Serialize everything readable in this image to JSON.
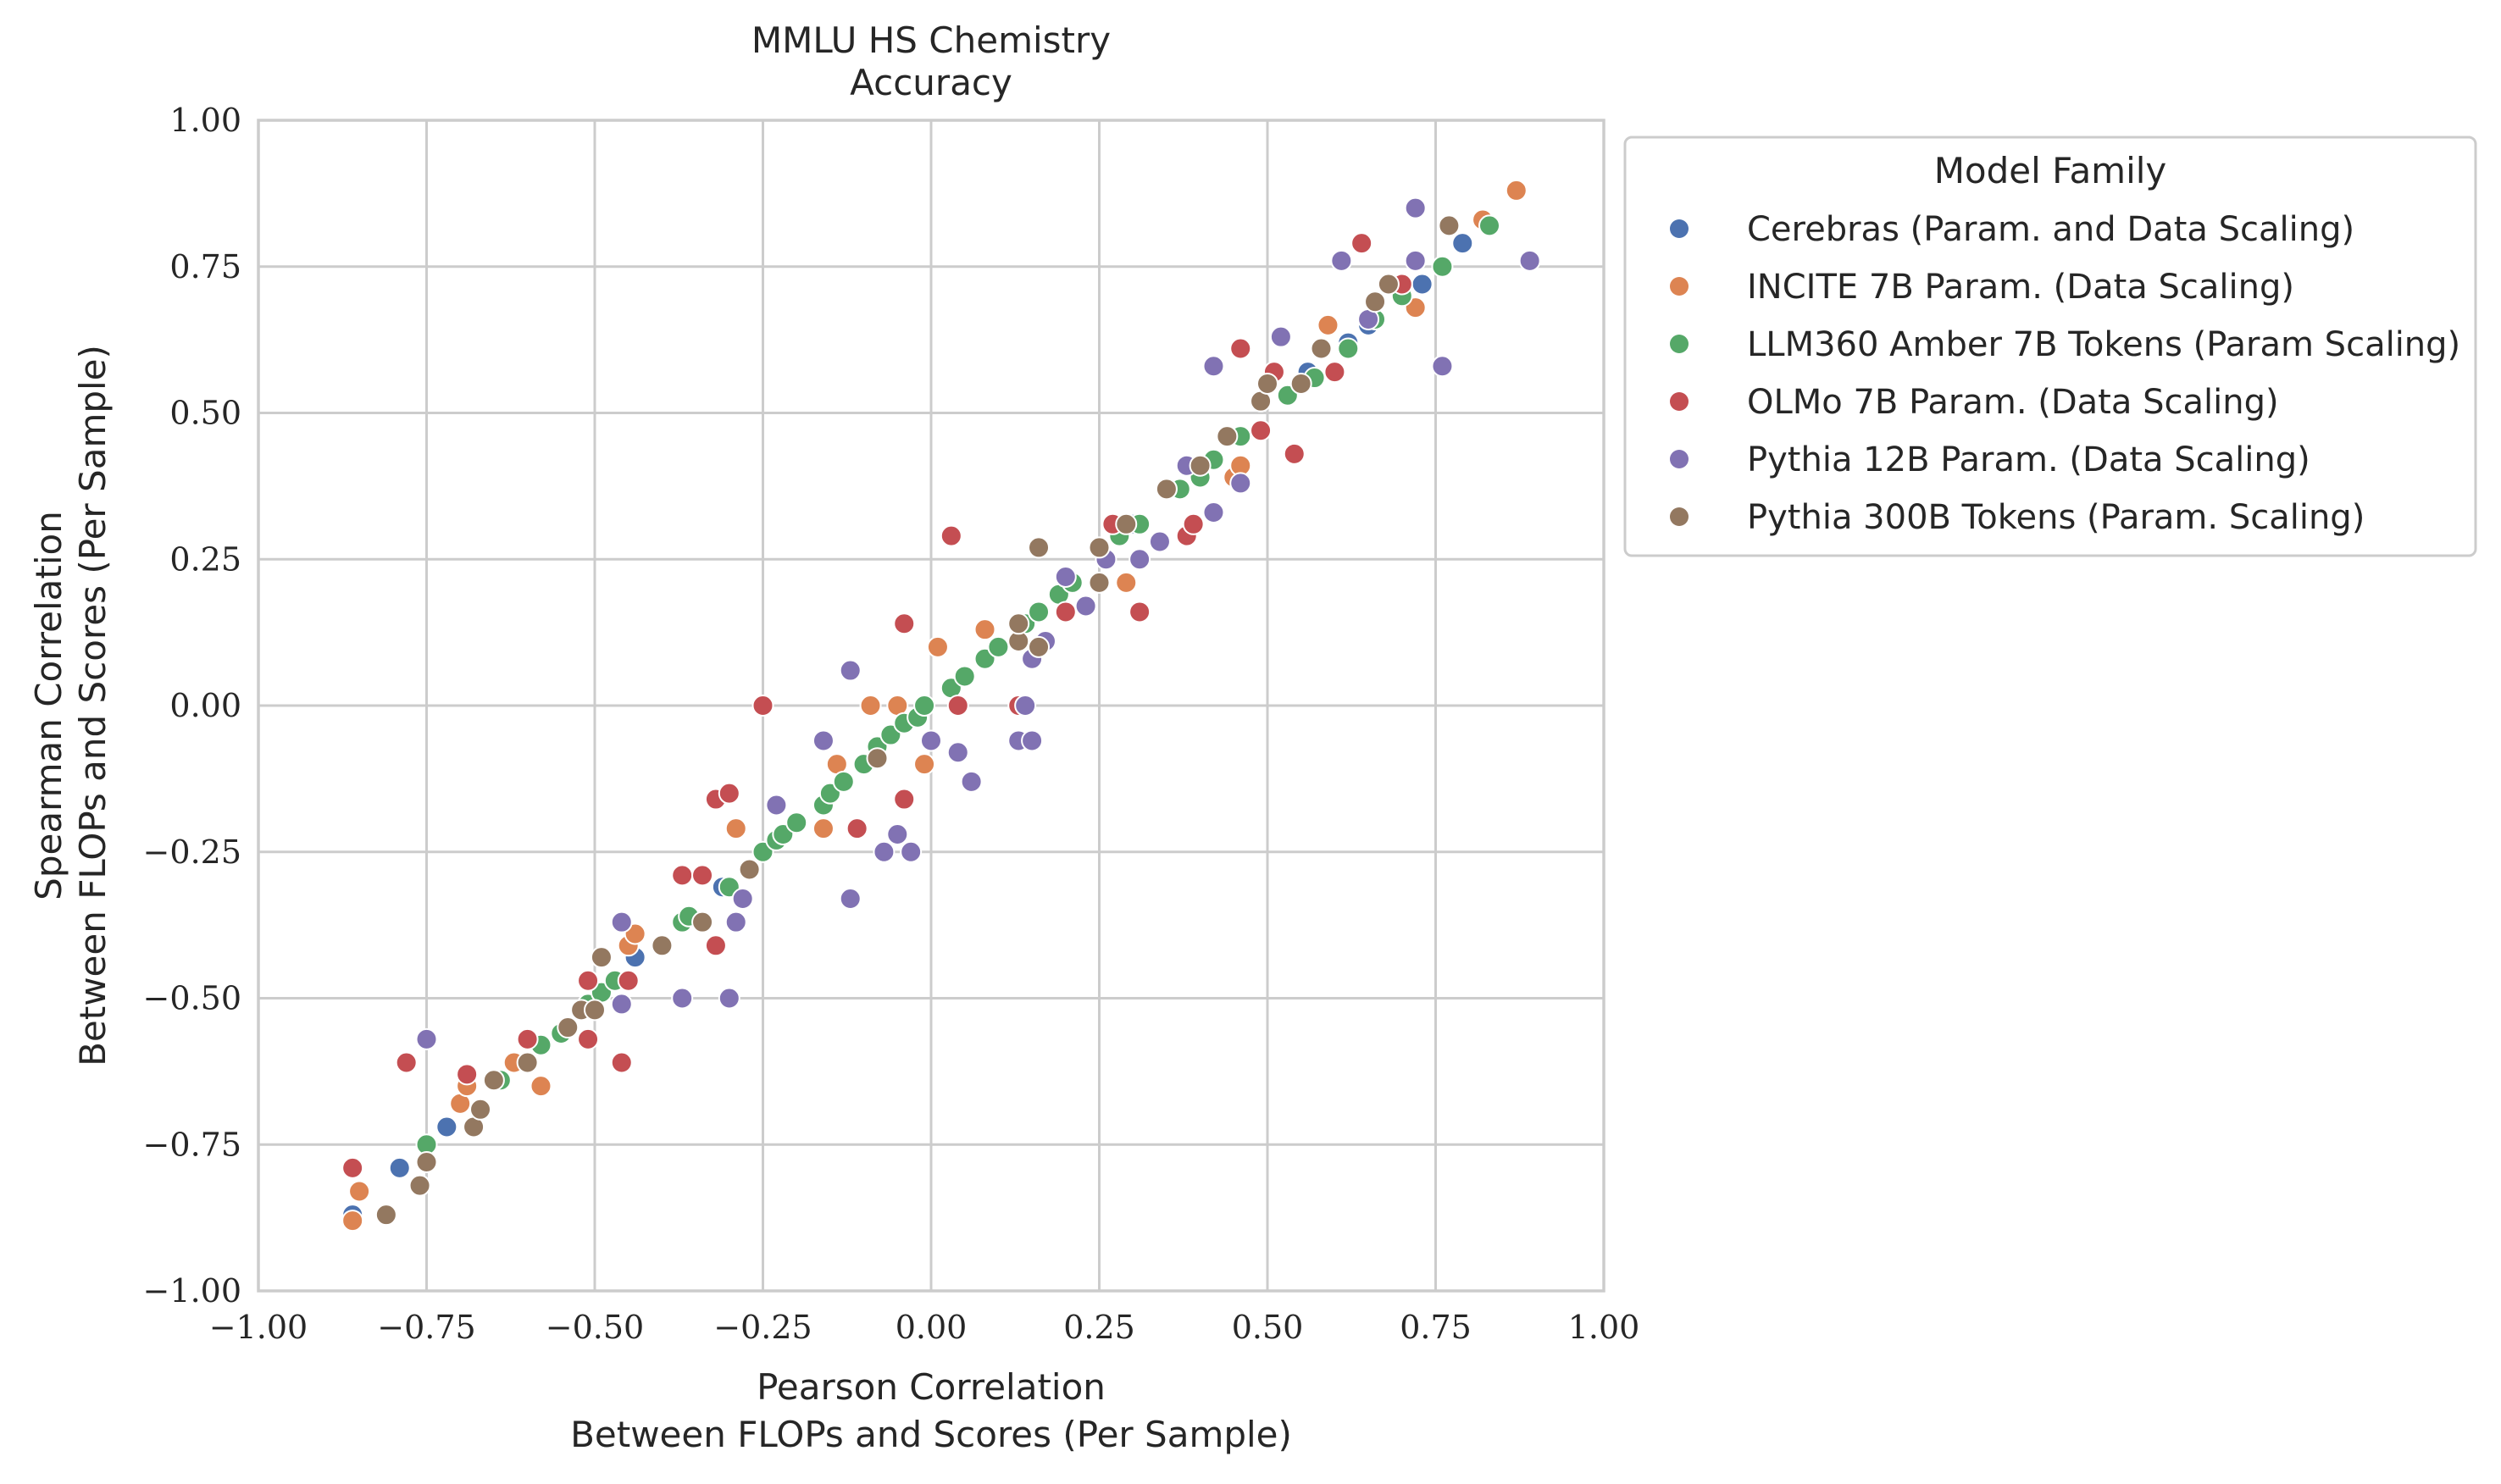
{
  "chart_data": {
    "type": "scatter",
    "title": "MMLU HS Chemistry",
    "subtitle": "Accuracy",
    "xlabel": [
      "Pearson Correlation",
      "Between FLOPs and Scores (Per Sample)"
    ],
    "ylabel": [
      "Spearman Correlation",
      "Between FLOPs and Scores (Per Sample)"
    ],
    "xlim": [
      -1.0,
      1.0
    ],
    "ylim": [
      -1.0,
      1.0
    ],
    "xticks": [
      -1.0,
      -0.75,
      -0.5,
      -0.25,
      0.0,
      0.25,
      0.5,
      0.75,
      1.0
    ],
    "yticks": [
      -1.0,
      -0.75,
      -0.5,
      -0.25,
      0.0,
      0.25,
      0.5,
      0.75,
      1.0
    ],
    "xtick_labels": [
      "−1.00",
      "−0.75",
      "−0.50",
      "−0.25",
      "0.00",
      "0.25",
      "0.50",
      "0.75",
      "1.00"
    ],
    "ytick_labels": [
      "−1.00",
      "−0.75",
      "−0.50",
      "−0.25",
      "0.00",
      "0.25",
      "0.50",
      "0.75",
      "1.00"
    ],
    "grid": true,
    "legend": {
      "title": "Model Family",
      "placement": "outside-right-top"
    },
    "series": [
      {
        "name": "Cerebras (Param. and Data Scaling)",
        "color": "#4c72b0",
        "points": [
          [
            -0.86,
            -0.87
          ],
          [
            -0.79,
            -0.79
          ],
          [
            -0.72,
            -0.72
          ],
          [
            -0.44,
            -0.43
          ],
          [
            -0.31,
            -0.31
          ],
          [
            0.3,
            0.31
          ],
          [
            0.56,
            0.57
          ],
          [
            0.62,
            0.62
          ],
          [
            0.65,
            0.65
          ],
          [
            0.73,
            0.72
          ],
          [
            0.79,
            0.79
          ]
        ]
      },
      {
        "name": "INCITE 7B Param. (Data Scaling)",
        "color": "#dd8452",
        "points": [
          [
            -0.86,
            -0.88
          ],
          [
            -0.85,
            -0.83
          ],
          [
            -0.7,
            -0.68
          ],
          [
            -0.69,
            -0.65
          ],
          [
            -0.62,
            -0.61
          ],
          [
            -0.58,
            -0.65
          ],
          [
            -0.45,
            -0.41
          ],
          [
            -0.44,
            -0.39
          ],
          [
            -0.29,
            -0.21
          ],
          [
            -0.16,
            -0.21
          ],
          [
            -0.14,
            -0.1
          ],
          [
            -0.09,
            0.0
          ],
          [
            -0.05,
            0.0
          ],
          [
            -0.01,
            -0.1
          ],
          [
            0.01,
            0.1
          ],
          [
            0.08,
            0.13
          ],
          [
            0.29,
            0.21
          ],
          [
            0.45,
            0.39
          ],
          [
            0.46,
            0.41
          ],
          [
            0.59,
            0.65
          ],
          [
            0.72,
            0.68
          ],
          [
            0.82,
            0.83
          ],
          [
            0.87,
            0.88
          ]
        ]
      },
      {
        "name": "LLM360 Amber 7B Tokens (Param Scaling)",
        "color": "#55a868",
        "points": [
          [
            -0.75,
            -0.75
          ],
          [
            -0.64,
            -0.64
          ],
          [
            -0.58,
            -0.58
          ],
          [
            -0.55,
            -0.56
          ],
          [
            -0.51,
            -0.51
          ],
          [
            -0.49,
            -0.49
          ],
          [
            -0.47,
            -0.47
          ],
          [
            -0.37,
            -0.37
          ],
          [
            -0.36,
            -0.36
          ],
          [
            -0.3,
            -0.31
          ],
          [
            -0.25,
            -0.25
          ],
          [
            -0.23,
            -0.23
          ],
          [
            -0.22,
            -0.22
          ],
          [
            -0.2,
            -0.2
          ],
          [
            -0.16,
            -0.17
          ],
          [
            -0.15,
            -0.15
          ],
          [
            -0.13,
            -0.13
          ],
          [
            -0.1,
            -0.1
          ],
          [
            -0.08,
            -0.07
          ],
          [
            -0.06,
            -0.05
          ],
          [
            -0.04,
            -0.03
          ],
          [
            -0.02,
            -0.02
          ],
          [
            -0.01,
            0.0
          ],
          [
            0.03,
            0.03
          ],
          [
            0.05,
            0.05
          ],
          [
            0.08,
            0.08
          ],
          [
            0.1,
            0.1
          ],
          [
            0.14,
            0.14
          ],
          [
            0.16,
            0.16
          ],
          [
            0.19,
            0.19
          ],
          [
            0.21,
            0.21
          ],
          [
            0.28,
            0.29
          ],
          [
            0.31,
            0.31
          ],
          [
            0.37,
            0.37
          ],
          [
            0.4,
            0.39
          ],
          [
            0.42,
            0.42
          ],
          [
            0.46,
            0.46
          ],
          [
            0.53,
            0.53
          ],
          [
            0.57,
            0.56
          ],
          [
            0.62,
            0.61
          ],
          [
            0.66,
            0.66
          ],
          [
            0.7,
            0.7
          ],
          [
            0.76,
            0.75
          ],
          [
            0.83,
            0.82
          ]
        ]
      },
      {
        "name": "OLMo 7B Param. (Data Scaling)",
        "color": "#c44e52",
        "points": [
          [
            -0.86,
            -0.79
          ],
          [
            -0.78,
            -0.61
          ],
          [
            -0.69,
            -0.63
          ],
          [
            -0.6,
            -0.57
          ],
          [
            -0.51,
            -0.47
          ],
          [
            -0.51,
            -0.57
          ],
          [
            -0.46,
            -0.61
          ],
          [
            -0.45,
            -0.47
          ],
          [
            -0.37,
            -0.29
          ],
          [
            -0.34,
            -0.29
          ],
          [
            -0.32,
            -0.41
          ],
          [
            -0.32,
            -0.16
          ],
          [
            -0.3,
            -0.15
          ],
          [
            -0.25,
            0.0
          ],
          [
            -0.11,
            -0.21
          ],
          [
            -0.04,
            0.14
          ],
          [
            -0.04,
            -0.16
          ],
          [
            0.03,
            0.29
          ],
          [
            0.04,
            0.0
          ],
          [
            0.13,
            0.0
          ],
          [
            0.2,
            0.16
          ],
          [
            0.27,
            0.31
          ],
          [
            0.31,
            0.16
          ],
          [
            0.38,
            0.29
          ],
          [
            0.39,
            0.31
          ],
          [
            0.46,
            0.61
          ],
          [
            0.49,
            0.47
          ],
          [
            0.51,
            0.57
          ],
          [
            0.54,
            0.43
          ],
          [
            0.6,
            0.57
          ],
          [
            0.64,
            0.79
          ],
          [
            0.7,
            0.72
          ]
        ]
      },
      {
        "name": "Pythia 12B Param. (Data Scaling)",
        "color": "#8172b3",
        "points": [
          [
            -0.75,
            -0.57
          ],
          [
            -0.46,
            -0.37
          ],
          [
            -0.46,
            -0.51
          ],
          [
            -0.37,
            -0.5
          ],
          [
            -0.3,
            -0.5
          ],
          [
            -0.29,
            -0.37
          ],
          [
            -0.28,
            -0.33
          ],
          [
            -0.23,
            -0.17
          ],
          [
            -0.16,
            -0.06
          ],
          [
            -0.12,
            0.06
          ],
          [
            -0.12,
            -0.33
          ],
          [
            -0.07,
            -0.25
          ],
          [
            -0.05,
            -0.22
          ],
          [
            -0.03,
            -0.25
          ],
          [
            0.0,
            -0.06
          ],
          [
            0.04,
            -0.08
          ],
          [
            0.06,
            -0.13
          ],
          [
            0.13,
            -0.06
          ],
          [
            0.14,
            0.0
          ],
          [
            0.15,
            -0.06
          ],
          [
            0.15,
            0.08
          ],
          [
            0.17,
            0.11
          ],
          [
            0.2,
            0.22
          ],
          [
            0.23,
            0.17
          ],
          [
            0.26,
            0.25
          ],
          [
            0.31,
            0.25
          ],
          [
            0.34,
            0.28
          ],
          [
            0.35,
            0.37
          ],
          [
            0.38,
            0.41
          ],
          [
            0.42,
            0.58
          ],
          [
            0.42,
            0.33
          ],
          [
            0.46,
            0.38
          ],
          [
            0.52,
            0.63
          ],
          [
            0.61,
            0.76
          ],
          [
            0.65,
            0.66
          ],
          [
            0.72,
            0.85
          ],
          [
            0.72,
            0.76
          ],
          [
            0.76,
            0.58
          ],
          [
            0.89,
            0.76
          ]
        ]
      },
      {
        "name": "Pythia 300B Tokens (Param. Scaling)",
        "color": "#937860",
        "points": [
          [
            -0.81,
            -0.87
          ],
          [
            -0.76,
            -0.82
          ],
          [
            -0.75,
            -0.78
          ],
          [
            -0.68,
            -0.72
          ],
          [
            -0.67,
            -0.69
          ],
          [
            -0.65,
            -0.64
          ],
          [
            -0.6,
            -0.61
          ],
          [
            -0.54,
            -0.55
          ],
          [
            -0.52,
            -0.52
          ],
          [
            -0.5,
            -0.52
          ],
          [
            -0.49,
            -0.43
          ],
          [
            -0.4,
            -0.41
          ],
          [
            -0.34,
            -0.37
          ],
          [
            -0.27,
            -0.28
          ],
          [
            -0.08,
            -0.09
          ],
          [
            0.13,
            0.11
          ],
          [
            0.13,
            0.14
          ],
          [
            0.16,
            0.1
          ],
          [
            0.16,
            0.27
          ],
          [
            0.25,
            0.27
          ],
          [
            0.25,
            0.21
          ],
          [
            0.29,
            0.31
          ],
          [
            0.35,
            0.37
          ],
          [
            0.4,
            0.41
          ],
          [
            0.44,
            0.46
          ],
          [
            0.49,
            0.52
          ],
          [
            0.5,
            0.55
          ],
          [
            0.55,
            0.55
          ],
          [
            0.58,
            0.61
          ],
          [
            0.66,
            0.69
          ],
          [
            0.68,
            0.72
          ],
          [
            0.77,
            0.82
          ]
        ]
      }
    ]
  }
}
